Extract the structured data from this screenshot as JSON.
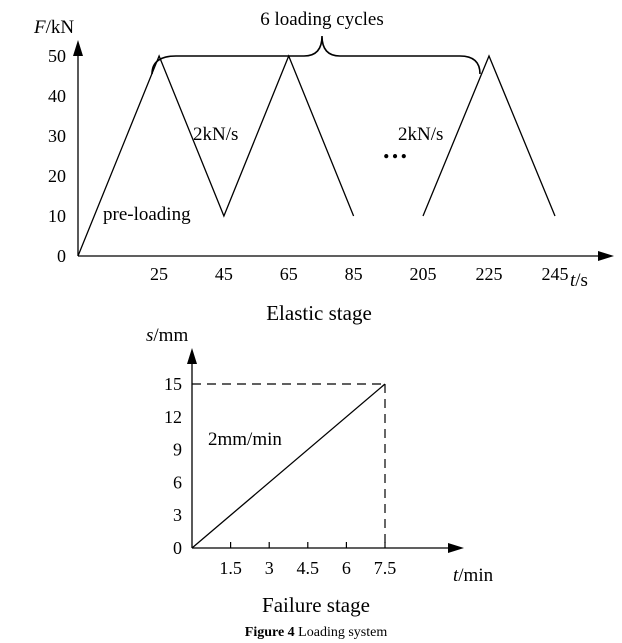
{
  "figure": {
    "label": "Figure 4",
    "caption": "Loading system"
  },
  "chart_data": [
    {
      "type": "line",
      "caption": "Elastic stage",
      "ylabel": {
        "var": "F",
        "unit": "/kN"
      },
      "xlabel": {
        "var": "t",
        "unit": "/s"
      },
      "yticks": [
        0,
        10,
        20,
        30,
        40,
        50
      ],
      "xticks": [
        "25",
        "45",
        "65",
        "85",
        "205",
        "225",
        "245"
      ],
      "ylim": [
        0,
        50
      ],
      "series": [
        {
          "segments": [
            {
              "x": [
                0,
                25,
                45,
                65,
                85
              ],
              "y": [
                0,
                50,
                10,
                50,
                10
              ]
            },
            {
              "x": [
                205,
                225,
                245
              ],
              "y": [
                10,
                50,
                10
              ]
            }
          ]
        }
      ],
      "annotations": {
        "cycles": "6 loading cycles",
        "preload": "pre-loading",
        "rate1": "2kN/s",
        "rate2": "2kN/s",
        "ellipsis": "…"
      }
    },
    {
      "type": "line",
      "caption": "Failure stage",
      "ylabel": {
        "var": "s",
        "unit": "/mm"
      },
      "xlabel": {
        "var": "t",
        "unit": "/min"
      },
      "yticks": [
        0,
        3,
        6,
        9,
        12,
        15
      ],
      "xticks": [
        "1.5",
        "3",
        "4.5",
        "6",
        "7.5"
      ],
      "ylim": [
        0,
        15
      ],
      "xlim": [
        0,
        7.5
      ],
      "series": [
        {
          "x": [
            0,
            7.5
          ],
          "y": [
            0,
            15
          ]
        }
      ],
      "annotations": {
        "rate": "2mm/min"
      }
    }
  ]
}
